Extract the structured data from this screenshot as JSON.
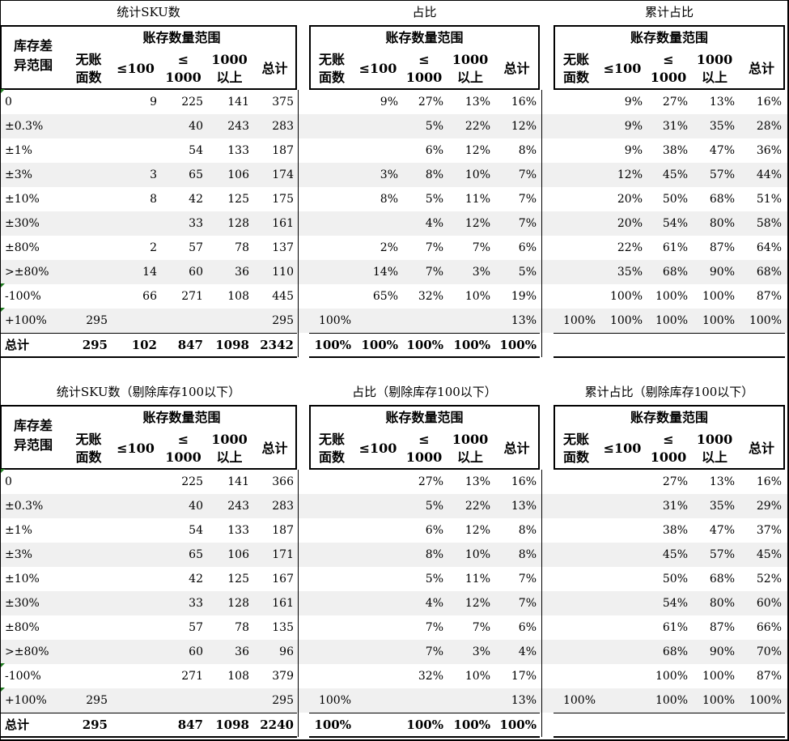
{
  "sections": [
    {
      "row_header": "库存差\n异范围",
      "panels": [
        {
          "title": "统计SKU数",
          "group_header": "账存数量范围",
          "col_headers": [
            "无账\n面数",
            "≤100",
            "≤\n1000",
            "1000\n以上",
            "总计"
          ]
        },
        {
          "title": "占比",
          "group_header": "账存数量范围",
          "col_headers": [
            "无账\n面数",
            "≤100",
            "≤\n1000",
            "1000\n以上",
            "总计"
          ]
        },
        {
          "title": "累计占比",
          "group_header": "账存数量范围",
          "col_headers": [
            "无账\n面数",
            "≤100",
            "≤\n1000",
            "1000\n以上",
            "总计"
          ]
        }
      ],
      "rows": [
        {
          "label": "0",
          "counts": [
            "",
            "9",
            "225",
            "141",
            "375"
          ],
          "share": [
            "",
            "9%",
            "27%",
            "13%",
            "16%"
          ],
          "cum": [
            "",
            "9%",
            "27%",
            "13%",
            "16%"
          ]
        },
        {
          "label": "±0.3%",
          "counts": [
            "",
            "",
            "40",
            "243",
            "283"
          ],
          "share": [
            "",
            "",
            "5%",
            "22%",
            "12%"
          ],
          "cum": [
            "",
            "9%",
            "31%",
            "35%",
            "28%"
          ]
        },
        {
          "label": "±1%",
          "counts": [
            "",
            "",
            "54",
            "133",
            "187"
          ],
          "share": [
            "",
            "",
            "6%",
            "12%",
            "8%"
          ],
          "cum": [
            "",
            "9%",
            "38%",
            "47%",
            "36%"
          ]
        },
        {
          "label": "±3%",
          "counts": [
            "",
            "3",
            "65",
            "106",
            "174"
          ],
          "share": [
            "",
            "3%",
            "8%",
            "10%",
            "7%"
          ],
          "cum": [
            "",
            "12%",
            "45%",
            "57%",
            "44%"
          ]
        },
        {
          "label": "±10%",
          "counts": [
            "",
            "8",
            "42",
            "125",
            "175"
          ],
          "share": [
            "",
            "8%",
            "5%",
            "11%",
            "7%"
          ],
          "cum": [
            "",
            "20%",
            "50%",
            "68%",
            "51%"
          ]
        },
        {
          "label": "±30%",
          "counts": [
            "",
            "",
            "33",
            "128",
            "161"
          ],
          "share": [
            "",
            "",
            "4%",
            "12%",
            "7%"
          ],
          "cum": [
            "",
            "20%",
            "54%",
            "80%",
            "58%"
          ]
        },
        {
          "label": "±80%",
          "counts": [
            "",
            "2",
            "57",
            "78",
            "137"
          ],
          "share": [
            "",
            "2%",
            "7%",
            "7%",
            "6%"
          ],
          "cum": [
            "",
            "22%",
            "61%",
            "87%",
            "64%"
          ]
        },
        {
          "label": ">±80%",
          "counts": [
            "",
            "14",
            "60",
            "36",
            "110"
          ],
          "share": [
            "",
            "14%",
            "7%",
            "3%",
            "5%"
          ],
          "cum": [
            "",
            "35%",
            "68%",
            "90%",
            "68%"
          ]
        },
        {
          "label": "-100%",
          "counts": [
            "",
            "66",
            "271",
            "108",
            "445"
          ],
          "share": [
            "",
            "65%",
            "32%",
            "10%",
            "19%"
          ],
          "cum": [
            "",
            "100%",
            "100%",
            "100%",
            "87%"
          ]
        },
        {
          "label": "+100%",
          "counts": [
            "295",
            "",
            "",
            "",
            "295"
          ],
          "share": [
            "100%",
            "",
            "",
            "",
            "13%"
          ],
          "cum": [
            "100%",
            "100%",
            "100%",
            "100%",
            "100%"
          ]
        }
      ],
      "total": {
        "label": "总计",
        "counts": [
          "295",
          "102",
          "847",
          "1098",
          "2342"
        ],
        "share": [
          "100%",
          "100%",
          "100%",
          "100%",
          "100%"
        ]
      }
    },
    {
      "row_header": "库存差\n异范围",
      "panels": [
        {
          "title": "统计SKU数（剔除库存100以下）",
          "group_header": "账存数量范围",
          "col_headers": [
            "无账\n面数",
            "≤100",
            "≤\n1000",
            "1000\n以上",
            "总计"
          ]
        },
        {
          "title": "占比（剔除库存100以下）",
          "group_header": "账存数量范围",
          "col_headers": [
            "无账\n面数",
            "≤100",
            "≤\n1000",
            "1000\n以上",
            "总计"
          ]
        },
        {
          "title": "累计占比（剔除库存100以下）",
          "group_header": "账存数量范围",
          "col_headers": [
            "无账\n面数",
            "≤100",
            "≤\n1000",
            "1000\n以上",
            "总计"
          ]
        }
      ],
      "rows": [
        {
          "label": "0",
          "counts": [
            "",
            "",
            "225",
            "141",
            "366"
          ],
          "share": [
            "",
            "",
            "27%",
            "13%",
            "16%"
          ],
          "cum": [
            "",
            "",
            "27%",
            "13%",
            "16%"
          ]
        },
        {
          "label": "±0.3%",
          "counts": [
            "",
            "",
            "40",
            "243",
            "283"
          ],
          "share": [
            "",
            "",
            "5%",
            "22%",
            "13%"
          ],
          "cum": [
            "",
            "",
            "31%",
            "35%",
            "29%"
          ]
        },
        {
          "label": "±1%",
          "counts": [
            "",
            "",
            "54",
            "133",
            "187"
          ],
          "share": [
            "",
            "",
            "6%",
            "12%",
            "8%"
          ],
          "cum": [
            "",
            "",
            "38%",
            "47%",
            "37%"
          ]
        },
        {
          "label": "±3%",
          "counts": [
            "",
            "",
            "65",
            "106",
            "171"
          ],
          "share": [
            "",
            "",
            "8%",
            "10%",
            "8%"
          ],
          "cum": [
            "",
            "",
            "45%",
            "57%",
            "45%"
          ]
        },
        {
          "label": "±10%",
          "counts": [
            "",
            "",
            "42",
            "125",
            "167"
          ],
          "share": [
            "",
            "",
            "5%",
            "11%",
            "7%"
          ],
          "cum": [
            "",
            "",
            "50%",
            "68%",
            "52%"
          ]
        },
        {
          "label": "±30%",
          "counts": [
            "",
            "",
            "33",
            "128",
            "161"
          ],
          "share": [
            "",
            "",
            "4%",
            "12%",
            "7%"
          ],
          "cum": [
            "",
            "",
            "54%",
            "80%",
            "60%"
          ]
        },
        {
          "label": "±80%",
          "counts": [
            "",
            "",
            "57",
            "78",
            "135"
          ],
          "share": [
            "",
            "",
            "7%",
            "7%",
            "6%"
          ],
          "cum": [
            "",
            "",
            "61%",
            "87%",
            "66%"
          ]
        },
        {
          "label": ">±80%",
          "counts": [
            "",
            "",
            "60",
            "36",
            "96"
          ],
          "share": [
            "",
            "",
            "7%",
            "3%",
            "4%"
          ],
          "cum": [
            "",
            "",
            "68%",
            "90%",
            "70%"
          ]
        },
        {
          "label": "-100%",
          "counts": [
            "",
            "",
            "271",
            "108",
            "379"
          ],
          "share": [
            "",
            "",
            "32%",
            "10%",
            "17%"
          ],
          "cum": [
            "",
            "",
            "100%",
            "100%",
            "87%"
          ]
        },
        {
          "label": "+100%",
          "counts": [
            "295",
            "",
            "",
            "",
            "295"
          ],
          "share": [
            "100%",
            "",
            "",
            "",
            "13%"
          ],
          "cum": [
            "100%",
            "",
            "100%",
            "100%",
            "100%"
          ]
        }
      ],
      "total": {
        "label": "总计",
        "counts": [
          "295",
          "",
          "847",
          "1098",
          "2240"
        ],
        "share": [
          "100%",
          "",
          "100%",
          "100%",
          "100%"
        ]
      }
    }
  ]
}
